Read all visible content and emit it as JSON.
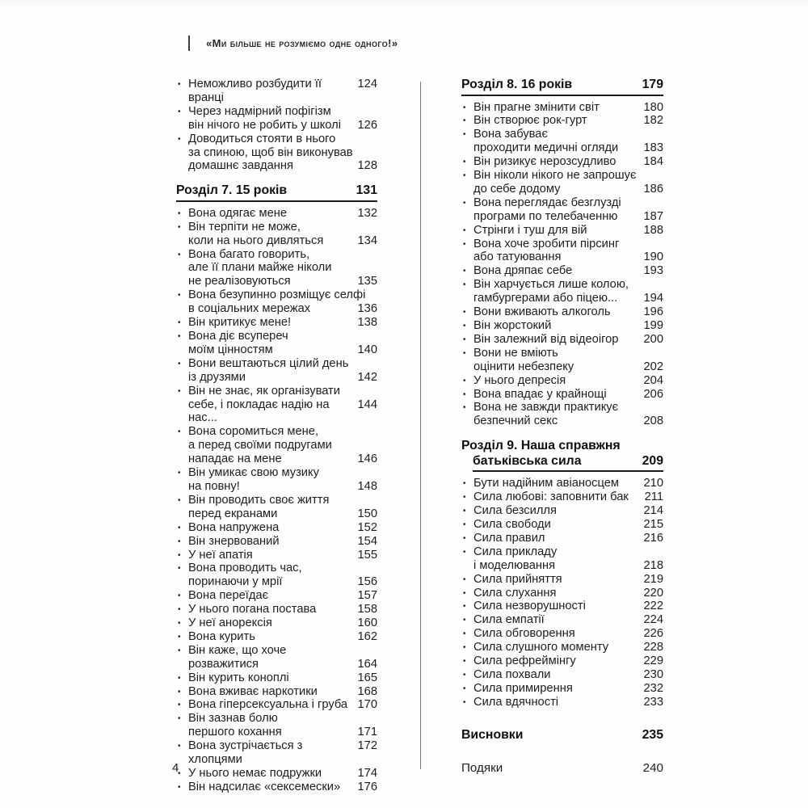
{
  "page": {
    "running_header_title": "«Ми більше не розуміємо одне одного!»",
    "page_number": "4"
  },
  "toc": {
    "left_column": [
      {
        "type": "section",
        "heading": null,
        "entries": [
          {
            "lines": [
              "Неможливо розбудити її вранці"
            ],
            "page": "124"
          },
          {
            "lines": [
              "Через надмірний пофігізм",
              "він нічого не робить у школі"
            ],
            "page": "126"
          },
          {
            "lines": [
              "Доводиться стояти в нього",
              "за спиною, щоб він виконував",
              "домашнє завдання"
            ],
            "page": "128"
          }
        ]
      },
      {
        "type": "section",
        "heading": {
          "lines": [
            "Розділ 7. 15 років"
          ],
          "page": "131"
        },
        "entries": [
          {
            "lines": [
              "Вона одягає мене"
            ],
            "page": "132"
          },
          {
            "lines": [
              "Він терпіти не може,",
              "коли на нього дивляться"
            ],
            "page": "134"
          },
          {
            "lines": [
              "Вона багато говорить,",
              "але її плани майже ніколи",
              "не реалізовуються"
            ],
            "page": "135"
          },
          {
            "lines": [
              "Вона безупинно розміщує селфі",
              "в соціальних мережах"
            ],
            "page": "136"
          },
          {
            "lines": [
              "Він критикує мене!"
            ],
            "page": "138"
          },
          {
            "lines": [
              "Вона діє всупереч",
              "моїм цінностям"
            ],
            "page": "140"
          },
          {
            "lines": [
              "Вони вештаються цілий день",
              "із друзями"
            ],
            "page": "142"
          },
          {
            "lines": [
              "Він не знає, як організувати",
              "себе, і покладає надію на нас..."
            ],
            "page": "144"
          },
          {
            "lines": [
              "Вона соромиться мене,",
              "а перед своїми подругами",
              "нападає на мене"
            ],
            "page": "146"
          },
          {
            "lines": [
              "Він умикає свою музику",
              "на повну!"
            ],
            "page": "148"
          },
          {
            "lines": [
              "Він проводить своє життя",
              "перед екранами"
            ],
            "page": "150"
          },
          {
            "lines": [
              "Вона напружена"
            ],
            "page": "152"
          },
          {
            "lines": [
              "Він знервований"
            ],
            "page": "154"
          },
          {
            "lines": [
              "У неї апатія"
            ],
            "page": "155"
          },
          {
            "lines": [
              "Вона проводить час,",
              "поринаючи у мрії"
            ],
            "page": "156"
          },
          {
            "lines": [
              "Вона переїдає"
            ],
            "page": "157"
          },
          {
            "lines": [
              "У нього погана постава"
            ],
            "page": "158"
          },
          {
            "lines": [
              "У неї анорексія"
            ],
            "page": "160"
          },
          {
            "lines": [
              "Вона курить"
            ],
            "page": "162"
          },
          {
            "lines": [
              "Він каже, що хоче",
              "розважитися"
            ],
            "page": "164"
          },
          {
            "lines": [
              "Він курить коноплі"
            ],
            "page": "165"
          },
          {
            "lines": [
              "Вона вживає наркотики"
            ],
            "page": "168"
          },
          {
            "lines": [
              "Вона гіперсексуальна і груба"
            ],
            "page": "170"
          },
          {
            "lines": [
              "Він зазнав болю",
              "першого кохання"
            ],
            "page": "171"
          },
          {
            "lines": [
              "Вона зустрічається з хлопцями"
            ],
            "page": "172"
          },
          {
            "lines": [
              "У нього немає подружки"
            ],
            "page": "174"
          },
          {
            "lines": [
              "Він надсилає «сексемески»"
            ],
            "page": "176"
          }
        ]
      }
    ],
    "right_column": [
      {
        "type": "section",
        "heading": {
          "lines": [
            "Розділ 8. 16 років"
          ],
          "page": "179"
        },
        "entries": [
          {
            "lines": [
              "Він прагне змінити світ"
            ],
            "page": "180"
          },
          {
            "lines": [
              "Він створює рок-гурт"
            ],
            "page": "182"
          },
          {
            "lines": [
              "Вона забуває",
              "проходити медичні огляди"
            ],
            "page": "183"
          },
          {
            "lines": [
              "Він ризикує нерозсудливо"
            ],
            "page": "184"
          },
          {
            "lines": [
              "Він ніколи нікого не запрошує",
              "до себе додому"
            ],
            "page": "186"
          },
          {
            "lines": [
              "Вона переглядає безглузді",
              "програми по телебаченню"
            ],
            "page": "187"
          },
          {
            "lines": [
              "Стрінги і туш для вій"
            ],
            "page": "188"
          },
          {
            "lines": [
              "Вона хоче зробити пірсинг",
              "або татуювання"
            ],
            "page": "190"
          },
          {
            "lines": [
              "Вона дряпає себе"
            ],
            "page": "193"
          },
          {
            "lines": [
              "Він харчується лише колою,",
              "гамбургерами або піцею..."
            ],
            "page": "194"
          },
          {
            "lines": [
              "Вони вживають алкоголь"
            ],
            "page": "196"
          },
          {
            "lines": [
              "Він жорстокий"
            ],
            "page": "199"
          },
          {
            "lines": [
              "Він залежний від відеоігор"
            ],
            "page": "200"
          },
          {
            "lines": [
              "Вони не вміють",
              "оцінити небезпеку"
            ],
            "page": "202"
          },
          {
            "lines": [
              "У нього депресія"
            ],
            "page": "204"
          },
          {
            "lines": [
              "Вона впадає у крайнощі"
            ],
            "page": "206"
          },
          {
            "lines": [
              "Вона не завжди практикує",
              "безпечний секс"
            ],
            "page": "208"
          }
        ]
      },
      {
        "type": "section",
        "heading": {
          "lines": [
            "Розділ 9. Наша справжня",
            "батьківська сила"
          ],
          "page": "209"
        },
        "entries": [
          {
            "lines": [
              "Бути надійним авіаносцем"
            ],
            "page": "210"
          },
          {
            "lines": [
              "Сила любові: заповнити бак"
            ],
            "page": "211"
          },
          {
            "lines": [
              "Сила безсилля"
            ],
            "page": "214"
          },
          {
            "lines": [
              "Сила свободи"
            ],
            "page": "215"
          },
          {
            "lines": [
              "Сила правил"
            ],
            "page": "216"
          },
          {
            "lines": [
              "Сила прикладу",
              "і моделювання"
            ],
            "page": "218"
          },
          {
            "lines": [
              "Сила прийняття"
            ],
            "page": "219"
          },
          {
            "lines": [
              "Сила слухання"
            ],
            "page": "220"
          },
          {
            "lines": [
              "Сила незворушності"
            ],
            "page": "222"
          },
          {
            "lines": [
              "Сила емпатії"
            ],
            "page": "224"
          },
          {
            "lines": [
              "Сила обговорення"
            ],
            "page": "226"
          },
          {
            "lines": [
              "Сила слушного моменту"
            ],
            "page": "228"
          },
          {
            "lines": [
              "Сила рефреймінгу"
            ],
            "page": "229"
          },
          {
            "lines": [
              "Сила похвали"
            ],
            "page": "230"
          },
          {
            "lines": [
              "Сила примирення"
            ],
            "page": "232"
          },
          {
            "lines": [
              "Сила вдячності"
            ],
            "page": "233"
          }
        ]
      },
      {
        "type": "standalone",
        "title": "Висновки",
        "page": "235",
        "bold": true
      },
      {
        "type": "standalone",
        "title": "Подяки",
        "page": "240",
        "bold": false
      }
    ]
  },
  "icons": {
    "bullet": "•"
  }
}
